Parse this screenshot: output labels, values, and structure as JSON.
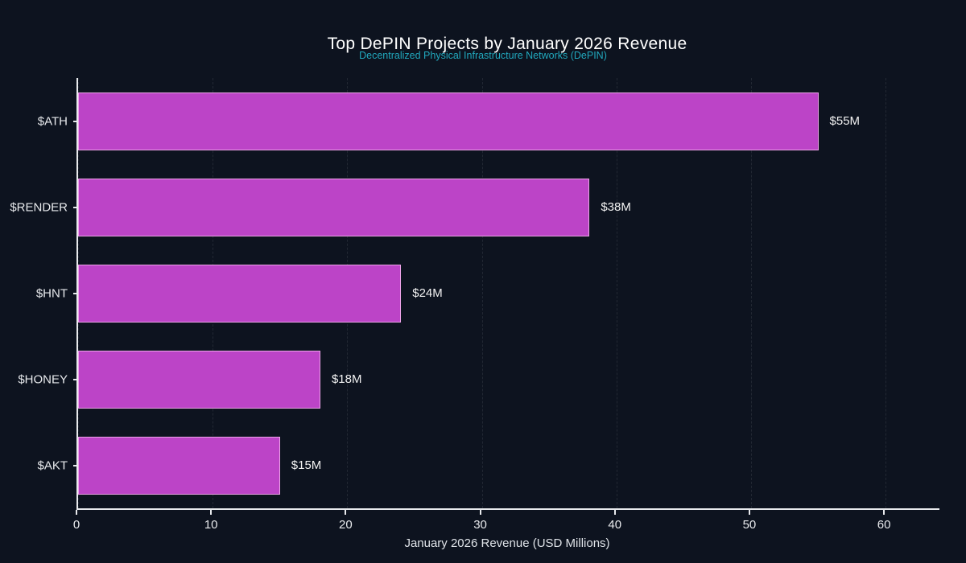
{
  "chart_data": {
    "type": "bar",
    "orientation": "horizontal",
    "title": "Top DePIN Projects by January 2026 Revenue",
    "subtitle": "Decentralized Physical Infrastructure Networks (DePIN)",
    "categories": [
      "$ATH",
      "$RENDER",
      "$HNT",
      "$HONEY",
      "$AKT"
    ],
    "values": [
      55,
      38,
      24,
      18,
      15
    ],
    "value_labels": [
      "$55M",
      "$38M",
      "$24M",
      "$18M",
      "$15M"
    ],
    "xlabel": "January 2026 Revenue (USD Millions)",
    "ylabel": "",
    "xlim": [
      0,
      64
    ],
    "xticks": [
      0,
      10,
      20,
      30,
      40,
      50,
      60
    ],
    "grid": true,
    "legend": "none",
    "colors": {
      "background": "#0d131f",
      "bar_fill": "#bc44c7",
      "bar_border": "#eda3e9",
      "title": "#ffffff",
      "subtitle": "#21a8bd",
      "axis": "#e8eaed",
      "tick_label": "#e8eaed",
      "value_label": "#f2f2f2"
    }
  }
}
